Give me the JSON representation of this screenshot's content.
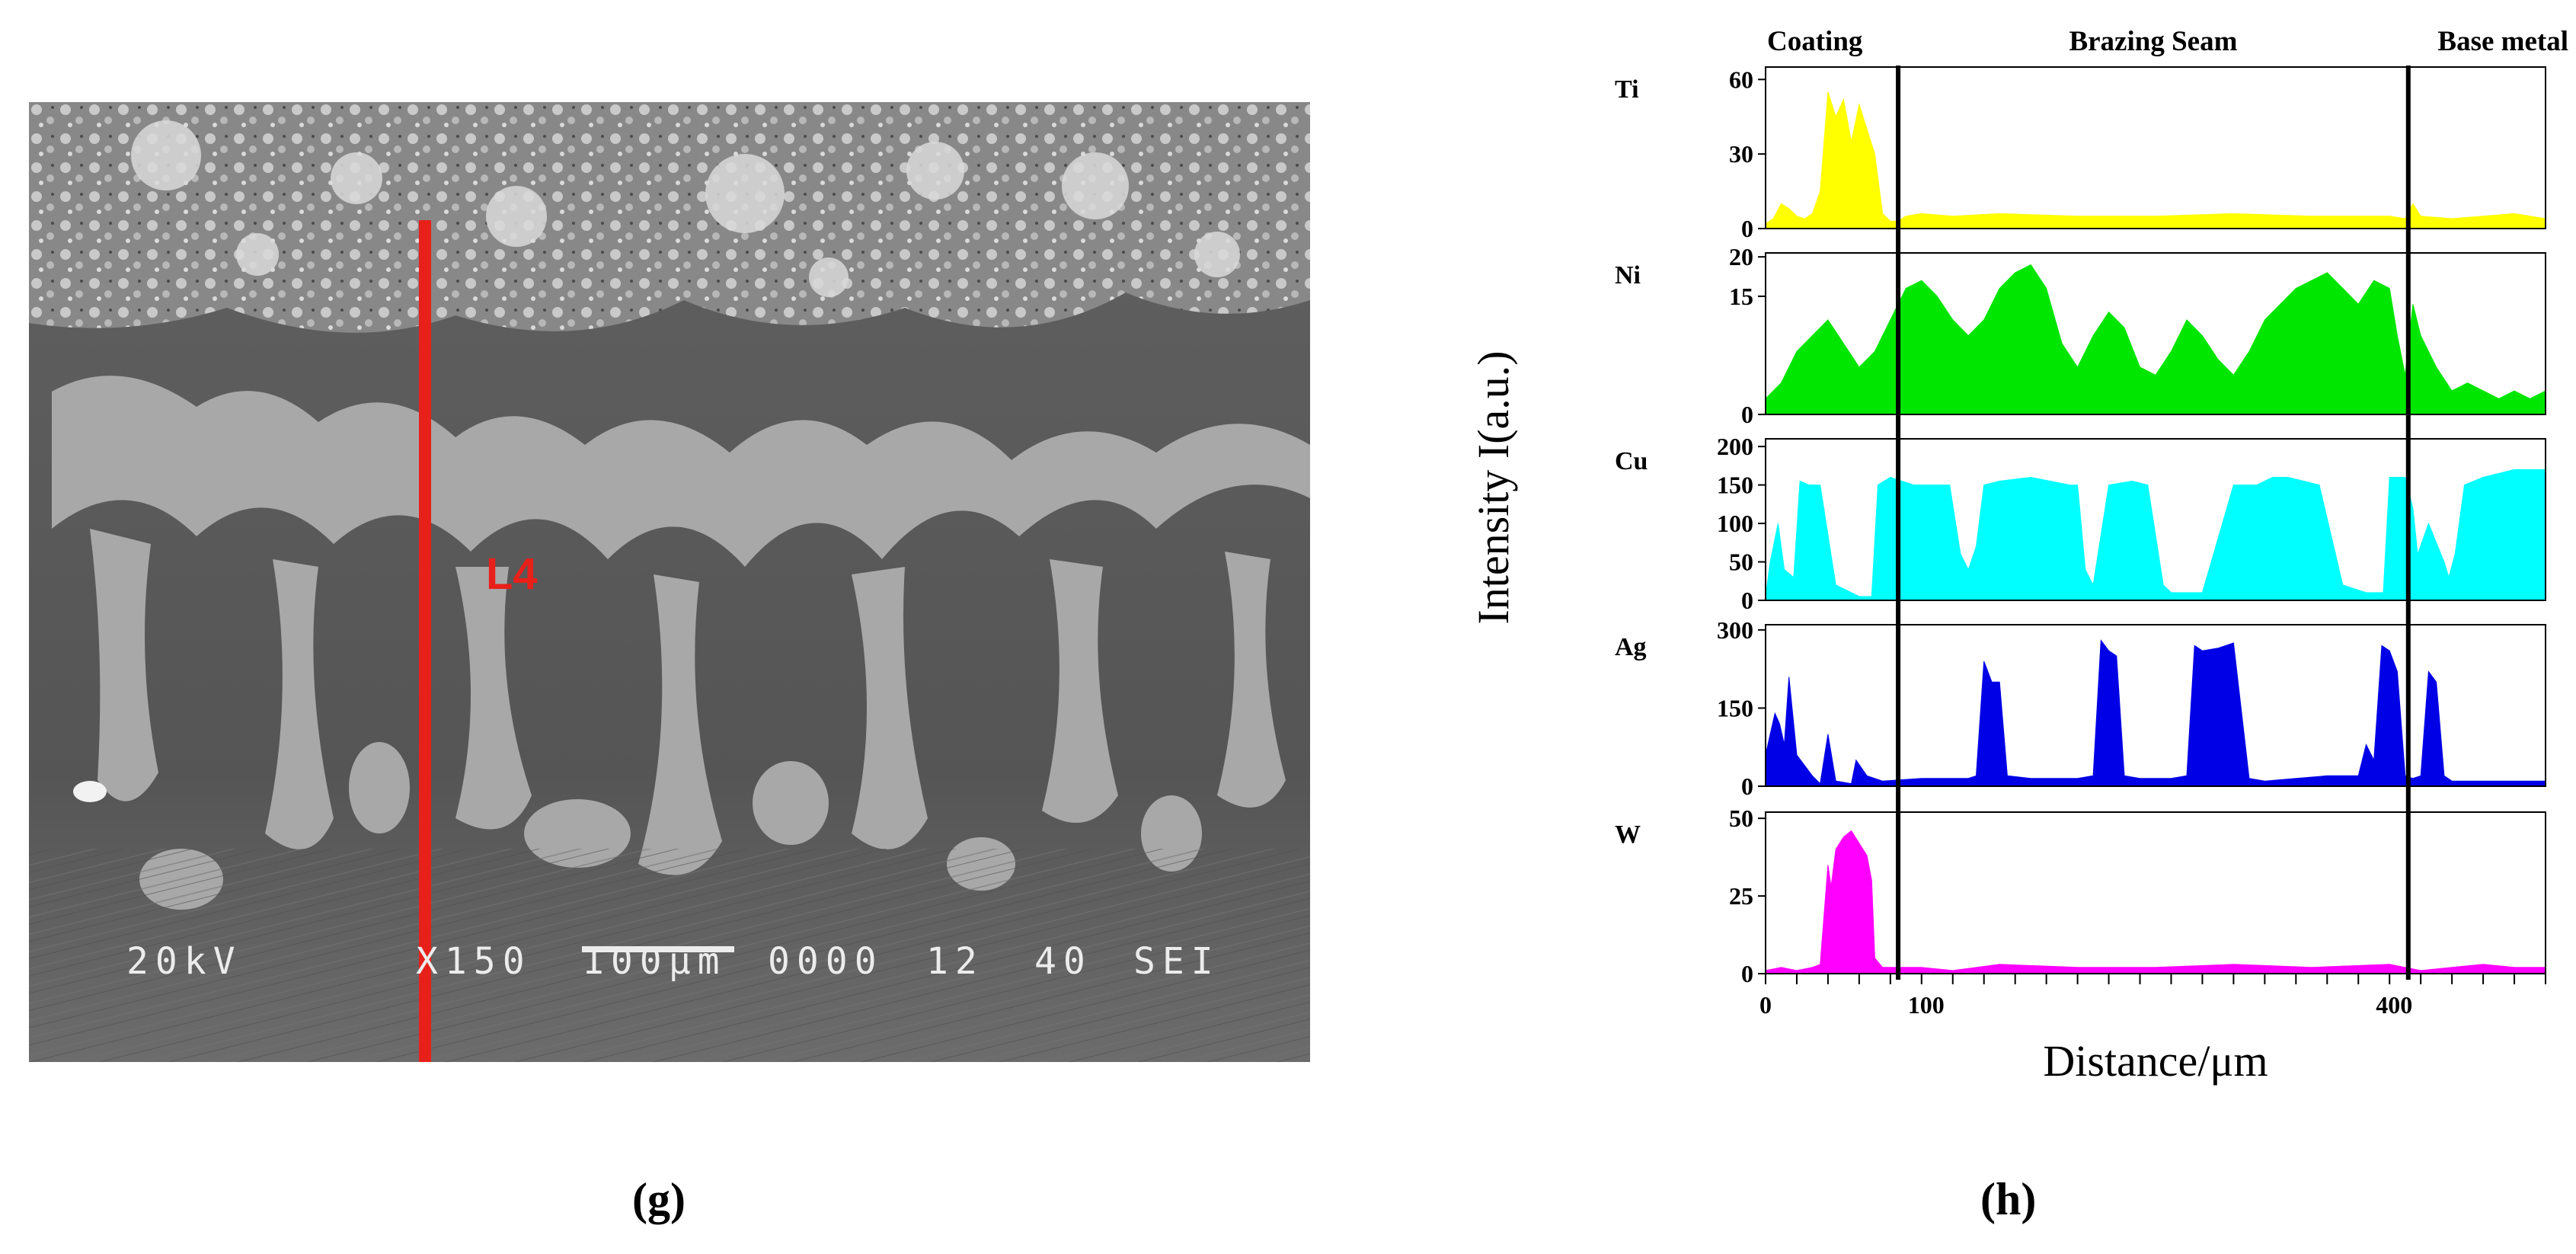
{
  "panels": {
    "left_label": "(g)",
    "right_label": "(h)"
  },
  "micrograph": {
    "scan_line_label": "L4",
    "info_voltage": "20kV",
    "info_magnification": "X150",
    "info_scale": "100µm",
    "info_code": "0000",
    "info_wd": "12",
    "info_spot": "40",
    "info_mode": "SEI",
    "colors": {
      "scan_line": "#e8201a",
      "background": "#5a5a5a",
      "phase": "#a9a9a9"
    }
  },
  "chart_data": {
    "type": "area",
    "xlabel": "Distance/μm",
    "ylabel": "Intensity I(a.u.)",
    "x_range": [
      0,
      500
    ],
    "x_ticks": [
      0,
      100,
      400
    ],
    "regions": [
      {
        "name": "Coating",
        "from": 0,
        "to": 85
      },
      {
        "name": "Brazing Seam",
        "from": 85,
        "to": 412
      },
      {
        "name": "Base metal",
        "from": 412,
        "to": 500
      }
    ],
    "boundaries": [
      85,
      412
    ],
    "series": [
      {
        "name": "Ti",
        "color": "#ffff00",
        "ylim": [
          0,
          65
        ],
        "yticks": [
          0,
          30,
          60
        ],
        "x": [
          0,
          5,
          10,
          15,
          20,
          25,
          30,
          35,
          40,
          45,
          50,
          55,
          60,
          65,
          70,
          75,
          80,
          85,
          90,
          100,
          120,
          150,
          200,
          250,
          300,
          350,
          400,
          410,
          415,
          420,
          440,
          460,
          480,
          500
        ],
        "y": [
          2,
          4,
          10,
          8,
          5,
          4,
          6,
          15,
          55,
          45,
          52,
          35,
          50,
          40,
          30,
          6,
          3,
          3,
          5,
          6,
          5,
          6,
          5,
          5,
          6,
          5,
          5,
          4,
          10,
          5,
          4,
          5,
          6,
          4
        ]
      },
      {
        "name": "Ni",
        "color": "#00e600",
        "ylim": [
          0,
          20.5
        ],
        "yticks": [
          0,
          15,
          20
        ],
        "x": [
          0,
          10,
          20,
          30,
          40,
          50,
          60,
          70,
          80,
          90,
          100,
          110,
          120,
          130,
          140,
          150,
          160,
          170,
          180,
          190,
          200,
          210,
          220,
          230,
          240,
          250,
          260,
          270,
          280,
          290,
          300,
          310,
          320,
          330,
          340,
          350,
          360,
          370,
          380,
          390,
          400,
          405,
          410,
          415,
          420,
          430,
          440,
          450,
          460,
          470,
          480,
          490,
          500
        ],
        "y": [
          2,
          4,
          8,
          10,
          12,
          9,
          6,
          8,
          12,
          16,
          17,
          15,
          12,
          10,
          12,
          16,
          18,
          19,
          16,
          9,
          6,
          10,
          13,
          11,
          6,
          5,
          8,
          12,
          10,
          7,
          5,
          8,
          12,
          14,
          16,
          17,
          18,
          16,
          14,
          17,
          16,
          10,
          5,
          14,
          10,
          6,
          3,
          4,
          3,
          2,
          3,
          2,
          3
        ]
      },
      {
        "name": "Cu",
        "color": "#00ffff",
        "ylim": [
          0,
          210
        ],
        "yticks": [
          0,
          50,
          100,
          150,
          200
        ],
        "x": [
          0,
          3,
          8,
          12,
          18,
          22,
          28,
          35,
          45,
          60,
          65,
          68,
          72,
          80,
          95,
          110,
          118,
          125,
          130,
          135,
          140,
          150,
          170,
          195,
          200,
          205,
          210,
          220,
          235,
          245,
          255,
          260,
          270,
          280,
          300,
          315,
          320,
          325,
          335,
          355,
          370,
          385,
          390,
          396,
          400,
          410,
          415,
          418,
          425,
          435,
          438,
          442,
          448,
          460,
          480,
          500
        ],
        "y": [
          5,
          50,
          100,
          40,
          30,
          155,
          150,
          150,
          20,
          5,
          5,
          5,
          150,
          160,
          150,
          150,
          150,
          60,
          40,
          70,
          150,
          155,
          160,
          150,
          150,
          40,
          20,
          150,
          155,
          150,
          20,
          10,
          10,
          10,
          150,
          150,
          155,
          160,
          160,
          150,
          20,
          10,
          10,
          10,
          160,
          160,
          120,
          60,
          100,
          50,
          30,
          60,
          150,
          160,
          170,
          170
        ]
      },
      {
        "name": "Ag",
        "color": "#0000e6",
        "ylim": [
          0,
          310
        ],
        "yticks": [
          0,
          150,
          300
        ],
        "x": [
          0,
          3,
          6,
          9,
          12,
          15,
          20,
          30,
          35,
          40,
          45,
          55,
          58,
          65,
          75,
          100,
          130,
          135,
          140,
          145,
          150,
          155,
          170,
          200,
          210,
          215,
          220,
          225,
          230,
          240,
          260,
          270,
          275,
          280,
          290,
          300,
          310,
          320,
          340,
          360,
          380,
          385,
          390,
          395,
          400,
          405,
          410,
          415,
          420,
          425,
          430,
          435,
          440,
          450,
          480,
          500
        ],
        "y": [
          60,
          100,
          140,
          120,
          80,
          210,
          60,
          20,
          5,
          100,
          10,
          5,
          50,
          20,
          10,
          15,
          15,
          20,
          240,
          200,
          200,
          20,
          15,
          15,
          20,
          280,
          260,
          250,
          20,
          15,
          15,
          20,
          270,
          260,
          265,
          275,
          15,
          10,
          15,
          20,
          20,
          80,
          50,
          270,
          260,
          220,
          20,
          15,
          20,
          220,
          200,
          20,
          10,
          10,
          10,
          10
        ]
      },
      {
        "name": "W",
        "color": "#ff00ff",
        "ylim": [
          0,
          52
        ],
        "yticks": [
          0,
          25,
          50
        ],
        "x": [
          0,
          10,
          20,
          30,
          35,
          40,
          42,
          45,
          50,
          55,
          60,
          65,
          68,
          70,
          75,
          80,
          90,
          100,
          120,
          150,
          200,
          250,
          300,
          350,
          400,
          420,
          440,
          460,
          480,
          500
        ],
        "y": [
          1,
          2,
          1,
          2,
          3,
          35,
          28,
          40,
          44,
          46,
          42,
          38,
          30,
          5,
          2,
          2,
          2,
          2,
          1,
          3,
          2,
          2,
          3,
          2,
          3,
          1,
          2,
          3,
          2,
          2
        ]
      }
    ],
    "colors": {
      "divider": "#000000",
      "axis": "#000000"
    }
  }
}
